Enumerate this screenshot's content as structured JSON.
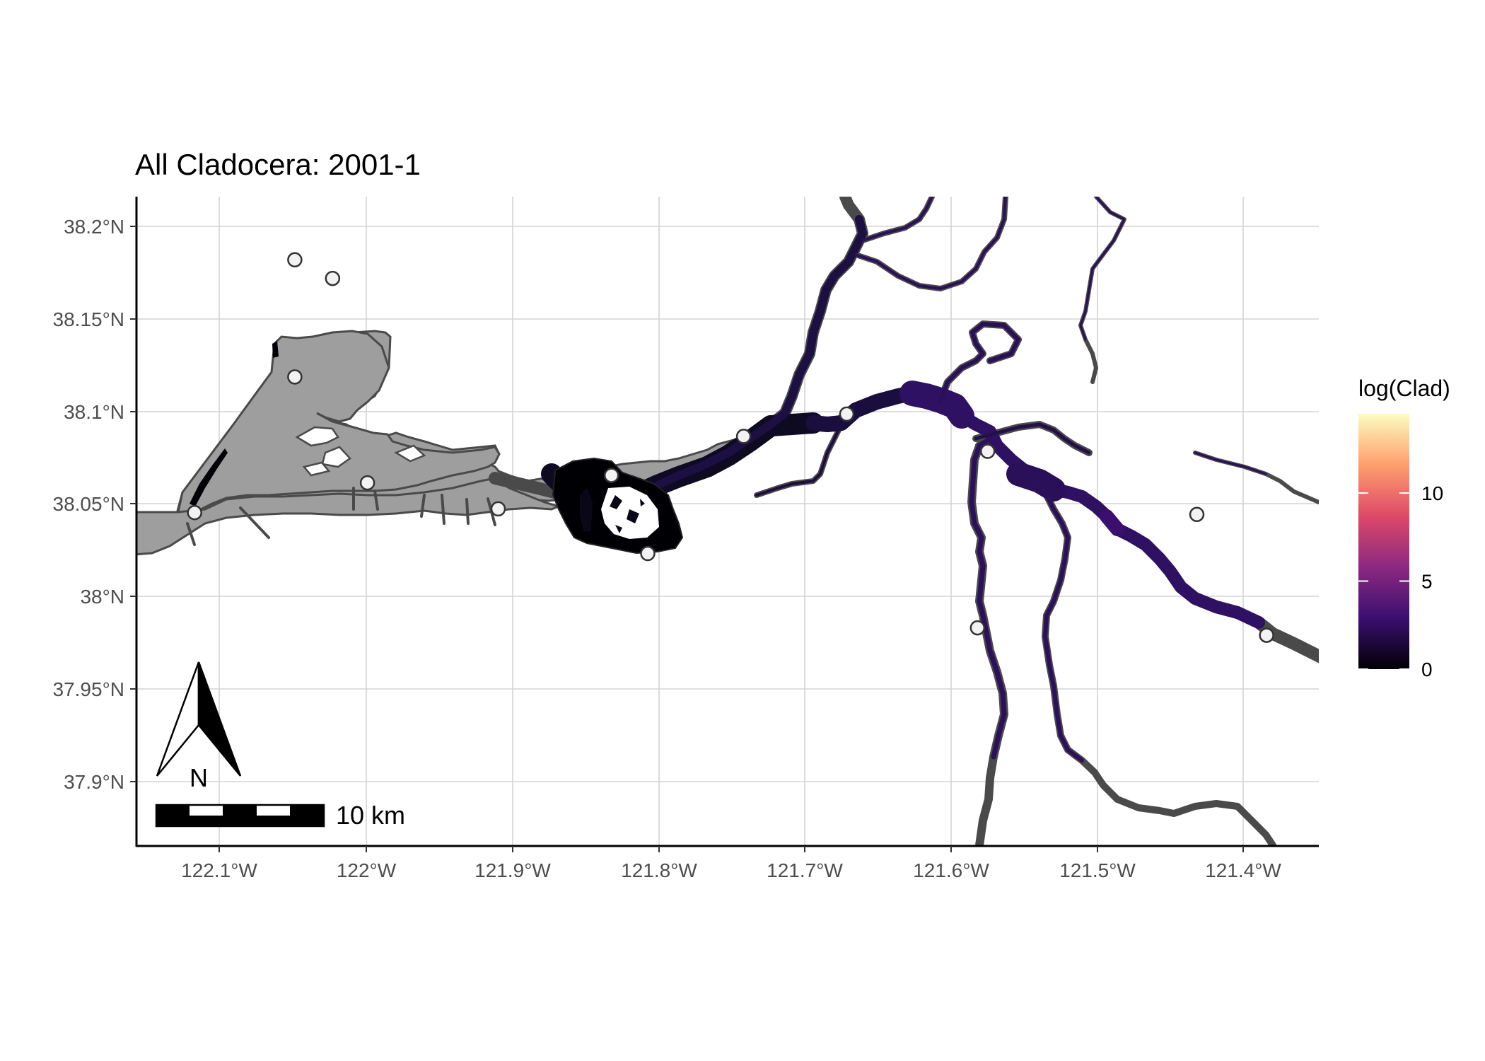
{
  "title": "All Cladocera: 2001-1",
  "axes": {
    "x_ticks": [
      "122.1°W",
      "122°W",
      "121.9°W",
      "121.8°W",
      "121.7°W",
      "121.6°W",
      "121.5°W",
      "121.4°W"
    ],
    "y_ticks": [
      "38.2°N",
      "38.15°N",
      "38.1°N",
      "38.05°N",
      "38°N",
      "37.95°N",
      "37.9°N"
    ]
  },
  "legend": {
    "title": "log(Clad)",
    "ticks": [
      "0",
      "5",
      "10"
    ],
    "range": [
      0,
      14.5
    ],
    "colors": [
      "#000004",
      "#3b0f70",
      "#8c2981",
      "#de4968",
      "#fe9f6d",
      "#fcfdbf"
    ]
  },
  "north_arrow": {
    "label": "N"
  },
  "scale_bar": {
    "label": "10 km"
  },
  "colors": {
    "land_grey": "#9e9e9e",
    "outline": "#4a4a4a",
    "grid": "#d4d4d4"
  },
  "chart_data": {
    "type": "map",
    "x_range": [
      -122.157,
      -121.343
    ],
    "y_range": [
      37.866,
      38.215
    ],
    "grid": true,
    "legend_position": "right",
    "stations": [
      {
        "lon": -122.048,
        "lat": 38.181
      },
      {
        "lon": -122.022,
        "lat": 38.171
      },
      {
        "lon": -122.048,
        "lat": 38.118
      },
      {
        "lon": -121.998,
        "lat": 38.061
      },
      {
        "lon": -122.117,
        "lat": 38.045
      },
      {
        "lon": -121.908,
        "lat": 38.047
      },
      {
        "lon": -121.83,
        "lat": 38.065
      },
      {
        "lon": -121.805,
        "lat": 38.023
      },
      {
        "lon": -121.739,
        "lat": 38.086
      },
      {
        "lon": -121.668,
        "lat": 38.098
      },
      {
        "lon": -121.571,
        "lat": 38.078
      },
      {
        "lon": -121.578,
        "lat": 37.983
      },
      {
        "lon": -121.427,
        "lat": 38.044
      },
      {
        "lon": -121.379,
        "lat": 37.979
      }
    ]
  }
}
